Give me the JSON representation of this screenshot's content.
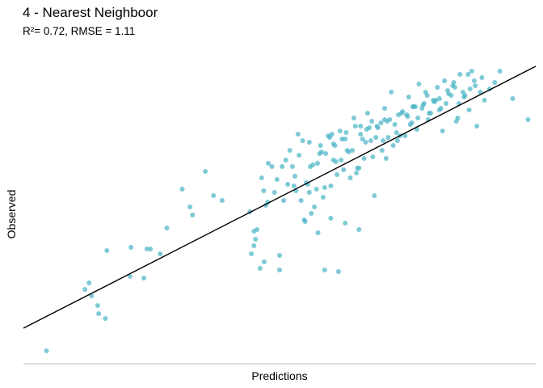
{
  "chart_data": {
    "type": "scatter",
    "title": "4 - Nearest Neighboor",
    "subtitle": "R²= 0.72, RMSE = 1.11",
    "xlabel": "Predictions",
    "ylabel": "Observed",
    "point_color": "#4db6c8",
    "line_color": "#000000",
    "axis_color": "#bdbdbd",
    "xlim": [
      0,
      10
    ],
    "ylim": [
      0,
      10
    ],
    "reference_line": {
      "x": [
        0,
        10
      ],
      "y": [
        1.1,
        9.2
      ]
    },
    "grid": false,
    "legend": "none",
    "x": [
      0.45,
      1.2,
      1.28,
      1.33,
      1.45,
      1.47,
      1.6,
      1.63,
      2.08,
      2.1,
      2.35,
      2.41,
      2.48,
      2.67,
      2.8,
      3.1,
      3.25,
      3.3,
      3.55,
      3.71,
      3.88,
      4.42,
      4.5,
      4.5,
      4.53,
      4.56,
      4.65,
      4.69,
      4.73,
      4.77,
      4.9,
      5.0,
      5.08,
      5.16,
      5.25,
      5.3,
      5.36,
      5.42,
      5.5,
      5.55,
      5.58,
      5.62,
      5.68,
      5.74,
      5.8,
      5.88,
      5.95,
      6.0,
      6.05,
      6.12,
      6.18,
      6.25,
      6.32,
      6.38,
      6.45,
      6.52,
      6.58,
      6.65,
      6.72,
      6.78,
      6.85,
      6.92,
      7.0,
      7.05,
      7.12,
      7.18,
      7.25,
      7.3,
      7.38,
      7.45,
      7.52,
      7.58,
      7.65,
      7.72,
      7.8,
      7.85,
      7.92,
      8.0,
      8.08,
      8.15,
      8.22,
      8.3,
      8.38,
      8.45,
      8.52,
      8.6,
      8.68,
      8.75,
      8.85,
      8.92,
      9.0,
      9.1,
      9.3,
      9.55,
      9.85,
      5.6,
      5.72,
      5.9,
      6.02,
      6.1,
      6.22,
      6.35,
      6.48,
      6.55,
      6.68,
      6.75,
      6.88,
      6.98,
      7.08,
      7.15,
      7.28,
      7.4,
      7.5,
      7.6,
      7.7,
      7.82,
      7.95,
      8.05,
      8.18,
      8.28,
      8.4,
      8.5,
      8.62,
      8.7,
      8.82,
      4.78,
      4.95,
      5.05,
      5.2,
      5.32,
      5.45,
      5.52,
      5.65,
      5.78,
      5.85,
      5.98,
      6.08,
      6.2,
      6.3,
      6.42,
      6.5,
      6.62,
      6.7,
      6.82,
      6.9,
      7.02,
      7.1,
      7.22,
      7.35,
      7.48,
      7.55,
      7.68,
      7.78,
      7.9,
      8.02,
      8.12,
      8.25,
      8.35,
      8.48,
      8.58,
      8.72,
      8.8,
      4.85,
      5.12,
      5.38,
      5.58,
      5.82,
      6.05,
      6.28,
      6.58,
      6.8,
      7.05,
      7.32,
      7.62,
      7.88,
      8.12,
      8.42,
      4.45,
      4.62,
      4.7,
      5.0,
      5.28,
      5.48,
      5.75,
      6.0,
      6.28,
      6.55,
      6.15,
      5.88,
      8.95,
      9.2
    ],
    "y": [
      0.4,
      2.3,
      2.5,
      2.1,
      1.8,
      1.55,
      1.4,
      3.5,
      2.7,
      3.6,
      2.65,
      3.55,
      3.55,
      3.4,
      4.2,
      5.4,
      4.85,
      4.6,
      5.95,
      5.2,
      5.05,
      4.7,
      4.1,
      3.65,
      3.85,
      4.15,
      5.75,
      5.35,
      4.9,
      5.0,
      5.3,
      3.35,
      5.05,
      5.55,
      6.1,
      5.8,
      7.1,
      5.05,
      4.4,
      5.55,
      5.3,
      4.65,
      4.85,
      6.2,
      6.75,
      5.45,
      7.05,
      5.5,
      6.3,
      5.85,
      7.2,
      6.0,
      6.6,
      5.75,
      7.6,
      6.05,
      7.35,
      6.35,
      7.75,
      6.9,
      5.2,
      7.3,
      6.6,
      7.9,
      7.0,
      8.4,
      7.4,
      6.9,
      7.75,
      7.05,
      8.25,
      7.45,
      7.95,
      8.65,
      8.0,
      8.4,
      7.75,
      8.15,
      8.55,
      7.9,
      8.75,
      8.35,
      8.6,
      7.5,
      8.95,
      8.25,
      8.95,
      9.05,
      7.35,
      8.4,
      8.15,
      8.5,
      9.05,
      8.2,
      7.55,
      6.1,
      5.4,
      6.5,
      7.1,
      6.25,
      6.95,
      6.55,
      7.35,
      6.05,
      6.85,
      7.3,
      7.0,
      7.45,
      6.35,
      7.55,
      7.15,
      7.8,
      7.65,
      7.95,
      7.6,
      8.05,
      7.75,
      8.15,
      7.2,
      8.45,
      8.7,
      8.05,
      8.3,
      7.85,
      8.6,
      6.2,
      5.7,
      6.1,
      6.6,
      5.35,
      6.9,
      5.6,
      6.15,
      6.5,
      5.15,
      7.0,
      6.75,
      6.3,
      7.15,
      6.6,
      5.9,
      6.95,
      7.25,
      6.4,
      7.35,
      6.9,
      7.5,
      6.75,
      7.05,
      7.7,
      7.4,
      7.25,
      7.9,
      7.55,
      8.1,
      7.85,
      8.05,
      8.3,
      7.6,
      8.4,
      8.5,
      8.75,
      6.1,
      6.3,
      6.45,
      6.85,
      6.55,
      6.8,
      6.95,
      7.1,
      7.5,
      7.55,
      7.7,
      7.95,
      8.3,
      8.2,
      8.55,
      3.4,
      2.95,
      3.15,
      2.9,
      5.5,
      4.45,
      4.05,
      4.5,
      4.35,
      4.15,
      2.85,
      2.9,
      8.85,
      8.7
    ]
  }
}
